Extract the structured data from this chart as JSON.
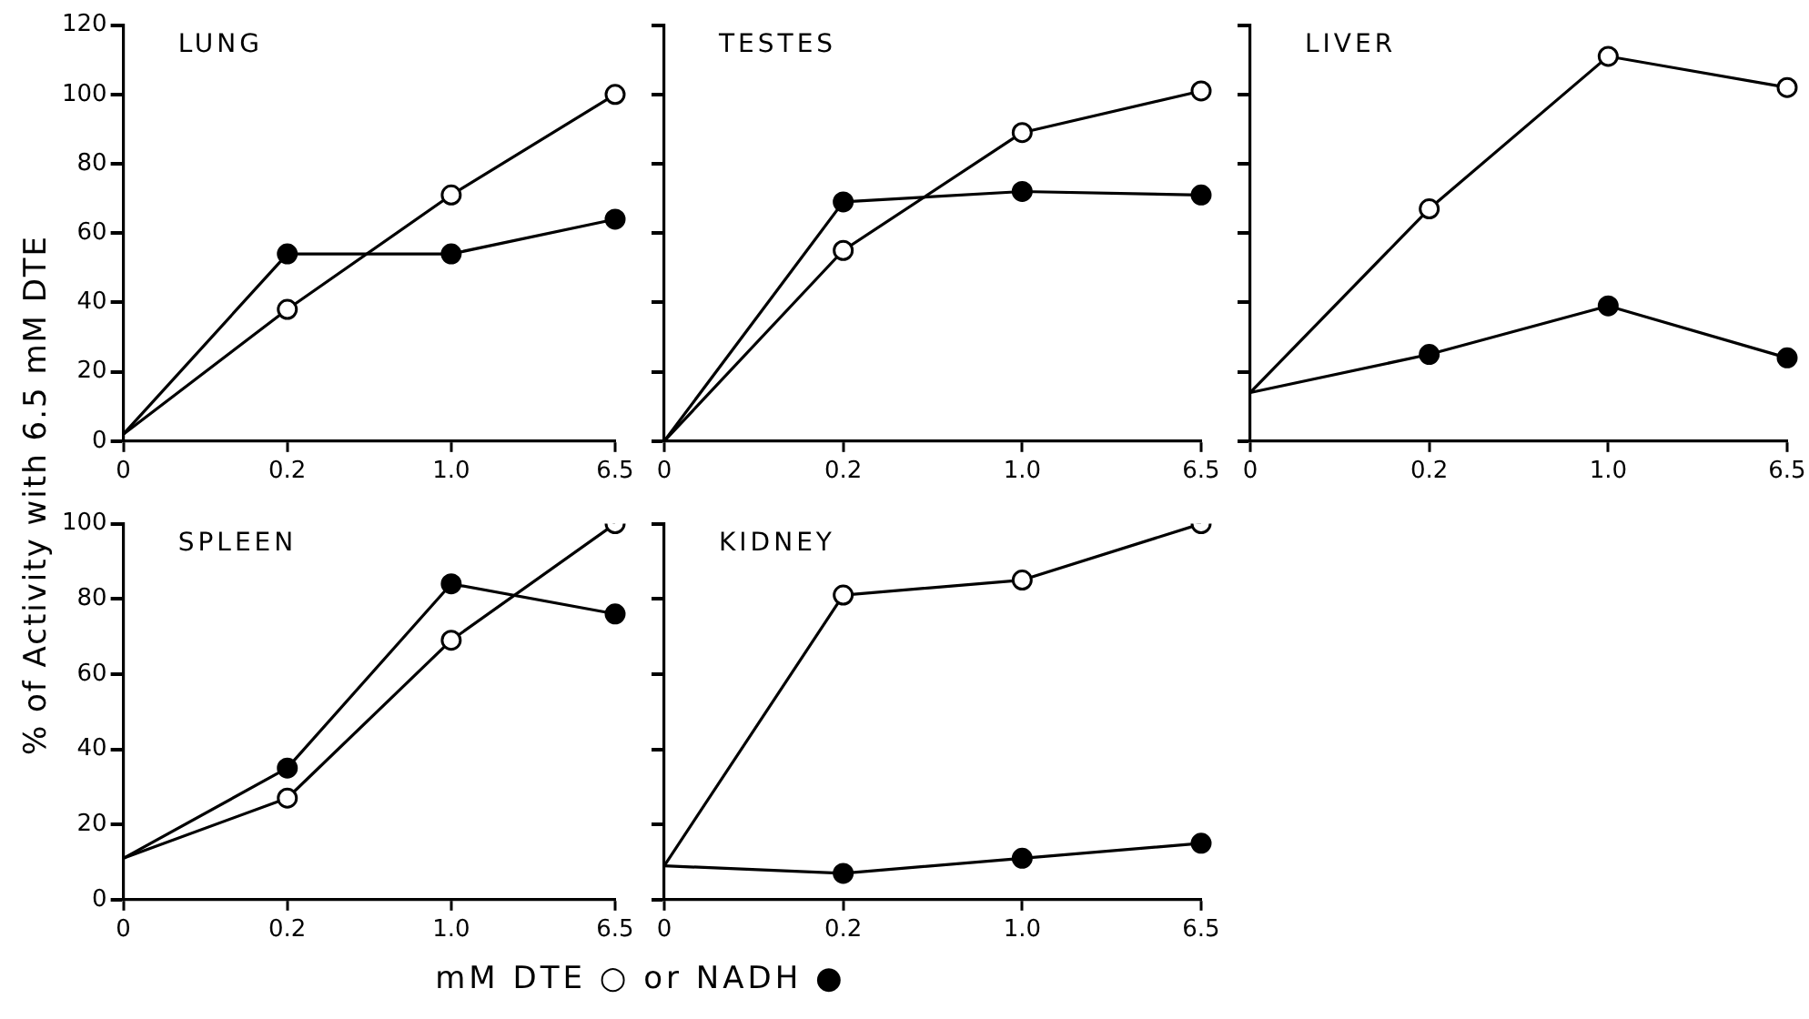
{
  "chart_data": [
    {
      "type": "line",
      "title": "LUNG",
      "ylabel": "% of Activity with 6.5 mM DTE",
      "categories": [
        "0",
        "0.2",
        "1.0",
        "6.5"
      ],
      "marker": "circle",
      "ylim": [
        0,
        120
      ],
      "yticks": [
        0,
        20,
        40,
        60,
        80,
        100,
        120
      ],
      "grid": false,
      "legend": false,
      "series": [
        {
          "color": "#000000",
          "values": [
            2,
            38,
            71,
            100
          ]
        },
        {
          "color": "#000000",
          "values": [
            2,
            54,
            54,
            64
          ]
        }
      ]
    },
    {
      "type": "line",
      "title": "TESTES",
      "categories": [
        "0",
        "0.2",
        "1.0",
        "6.5"
      ],
      "marker": "circle",
      "ylim": [
        0,
        120
      ],
      "yticks": [
        0,
        20,
        40,
        60,
        80,
        100,
        120
      ],
      "tick_labels": "x",
      "grid": false,
      "legend": false,
      "series": [
        {
          "color": "#000000",
          "values": [
            0,
            55,
            89,
            101
          ]
        },
        {
          "color": "#000000",
          "values": [
            0,
            69,
            72,
            71
          ]
        }
      ]
    },
    {
      "type": "line",
      "title": "LIVER",
      "categories": [
        "0",
        "0.2",
        "1.0",
        "6.5"
      ],
      "marker": "circle",
      "ylim": [
        0,
        120
      ],
      "yticks": [
        0,
        20,
        40,
        60,
        80,
        100,
        120
      ],
      "tick_labels": "x",
      "grid": false,
      "legend": false,
      "series": [
        {
          "color": "#000000",
          "values": [
            14,
            67,
            111,
            102
          ]
        },
        {
          "color": "#000000",
          "values": [
            14,
            25,
            39,
            24
          ]
        }
      ]
    },
    {
      "type": "line",
      "title": "SPLEEN",
      "xlabel": "mM DTE ○ or NADH ●",
      "categories": [
        "0",
        "0.2",
        "1.0",
        "6.5"
      ],
      "marker": "circle",
      "ylim": [
        0,
        100
      ],
      "yticks": [
        0,
        20,
        40,
        60,
        80,
        100
      ],
      "grid": false,
      "legend": false,
      "series": [
        {
          "color": "#000000",
          "values": [
            11,
            27,
            69,
            100
          ]
        },
        {
          "color": "#000000",
          "values": [
            11,
            35,
            84,
            76
          ]
        }
      ]
    },
    {
      "type": "line",
      "title": "KIDNEY",
      "categories": [
        "0",
        "0.2",
        "1.0",
        "6.5"
      ],
      "marker": "circle",
      "ylim": [
        0,
        100
      ],
      "yticks": [
        0,
        20,
        40,
        60,
        80,
        100
      ],
      "tick_labels": "x",
      "grid": false,
      "legend": false,
      "series": [
        {
          "color": "#000000",
          "values": [
            9,
            81,
            85,
            100
          ]
        },
        {
          "color": "#000000",
          "values": [
            9,
            7,
            11,
            15
          ]
        }
      ]
    }
  ]
}
